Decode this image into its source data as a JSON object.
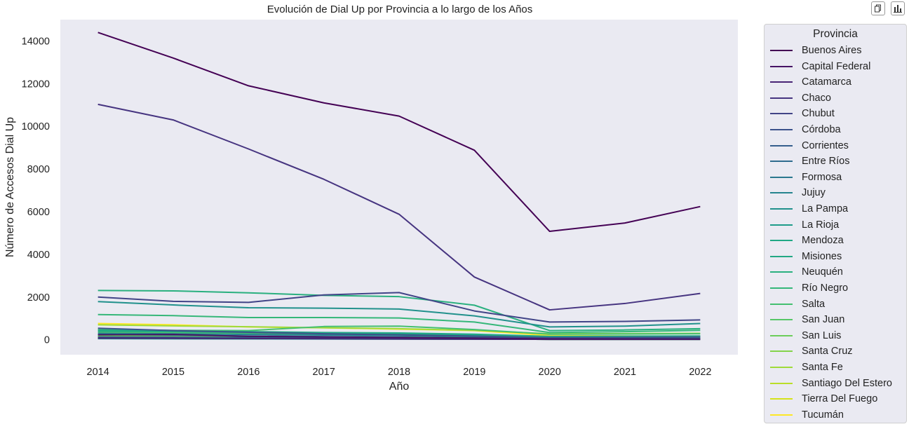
{
  "toolbar": {
    "copy_icon": "copy-icon",
    "chart_icon": "bar-chart-icon"
  },
  "chart_data": {
    "type": "line",
    "title": "Evolución de Dial Up por Provincia a lo largo de los Años",
    "xlabel": "Año",
    "ylabel": "Número de Accesos Dial Up",
    "x": [
      2014,
      2015,
      2016,
      2017,
      2018,
      2019,
      2020,
      2021,
      2022
    ],
    "yticks": [
      0,
      2000,
      4000,
      6000,
      8000,
      10000,
      12000,
      14000
    ],
    "ylim": [
      -700,
      15000
    ],
    "xlim": [
      2013.5,
      2022.5
    ],
    "grid": false,
    "background": "#eaeaf2",
    "legend_title": "Provincia",
    "legend_position": "right",
    "series": [
      {
        "name": "Buenos Aires",
        "color": "#440154",
        "values": [
          14400,
          13200,
          11900,
          11100,
          10480,
          8880,
          5080,
          5470,
          6240
        ]
      },
      {
        "name": "Capital Federal",
        "color": "#471365",
        "values": [
          230,
          250,
          160,
          130,
          110,
          80,
          40,
          40,
          40
        ]
      },
      {
        "name": "Catamarca",
        "color": "#482475",
        "values": [
          80,
          70,
          60,
          50,
          40,
          30,
          20,
          20,
          20
        ]
      },
      {
        "name": "Chaco",
        "color": "#463480",
        "values": [
          11030,
          10300,
          8940,
          7520,
          5880,
          2940,
          1400,
          1700,
          2170
        ]
      },
      {
        "name": "Chubut",
        "color": "#414487",
        "values": [
          2000,
          1800,
          1750,
          2100,
          2210,
          1350,
          830,
          860,
          930
        ]
      },
      {
        "name": "Córdoba",
        "color": "#3b528b",
        "values": [
          540,
          430,
          350,
          280,
          230,
          170,
          100,
          110,
          130
        ]
      },
      {
        "name": "Corrientes",
        "color": "#355f8d",
        "values": [
          130,
          120,
          100,
          90,
          80,
          60,
          40,
          40,
          40
        ]
      },
      {
        "name": "Entre Ríos",
        "color": "#2f6c8e",
        "values": [
          250,
          220,
          180,
          150,
          120,
          90,
          60,
          60,
          60
        ]
      },
      {
        "name": "Formosa",
        "color": "#2a788e",
        "values": [
          60,
          55,
          50,
          40,
          35,
          30,
          20,
          20,
          20
        ]
      },
      {
        "name": "Jujuy",
        "color": "#25848e",
        "values": [
          300,
          280,
          250,
          220,
          190,
          150,
          90,
          90,
          100
        ]
      },
      {
        "name": "La Pampa",
        "color": "#21918c",
        "values": [
          1790,
          1630,
          1500,
          1480,
          1440,
          1120,
          600,
          640,
          760
        ]
      },
      {
        "name": "La Rioja",
        "color": "#1e9c89",
        "values": [
          50,
          45,
          40,
          35,
          30,
          25,
          20,
          20,
          20
        ]
      },
      {
        "name": "Mendoza",
        "color": "#20a885",
        "values": [
          440,
          410,
          380,
          340,
          320,
          260,
          160,
          170,
          180
        ]
      },
      {
        "name": "Misiones",
        "color": "#22a884",
        "values": [
          400,
          380,
          340,
          300,
          270,
          220,
          150,
          160,
          170
        ]
      },
      {
        "name": "Neuquén",
        "color": "#2ab07f",
        "values": [
          2310,
          2290,
          2200,
          2080,
          2020,
          1620,
          430,
          460,
          520
        ]
      },
      {
        "name": "Río Negro",
        "color": "#35b779",
        "values": [
          1180,
          1130,
          1040,
          1040,
          1020,
          830,
          340,
          380,
          440
        ]
      },
      {
        "name": "Salta",
        "color": "#44bf70",
        "values": [
          480,
          440,
          430,
          620,
          640,
          480,
          260,
          270,
          280
        ]
      },
      {
        "name": "San Juan",
        "color": "#56c667",
        "values": [
          360,
          340,
          300,
          270,
          240,
          200,
          130,
          140,
          150
        ]
      },
      {
        "name": "San Luis",
        "color": "#6ccd5a",
        "values": [
          180,
          170,
          150,
          130,
          120,
          100,
          70,
          70,
          80
        ]
      },
      {
        "name": "Santa Cruz",
        "color": "#84d44b",
        "values": [
          120,
          110,
          100,
          90,
          80,
          70,
          50,
          50,
          50
        ]
      },
      {
        "name": "Santa Fe",
        "color": "#9fda3a",
        "values": [
          700,
          650,
          610,
          560,
          520,
          440,
          280,
          290,
          300
        ]
      },
      {
        "name": "Santiago Del Estero",
        "color": "#bade28",
        "values": [
          150,
          140,
          120,
          110,
          100,
          80,
          50,
          50,
          50
        ]
      },
      {
        "name": "Tierra Del Fuego",
        "color": "#d5e21a",
        "values": [
          60,
          55,
          50,
          45,
          40,
          35,
          20,
          20,
          20
        ]
      },
      {
        "name": "Tucumán",
        "color": "#fde725",
        "values": [
          760,
          700,
          600,
          560,
          500,
          430,
          200,
          180,
          160
        ]
      }
    ]
  }
}
